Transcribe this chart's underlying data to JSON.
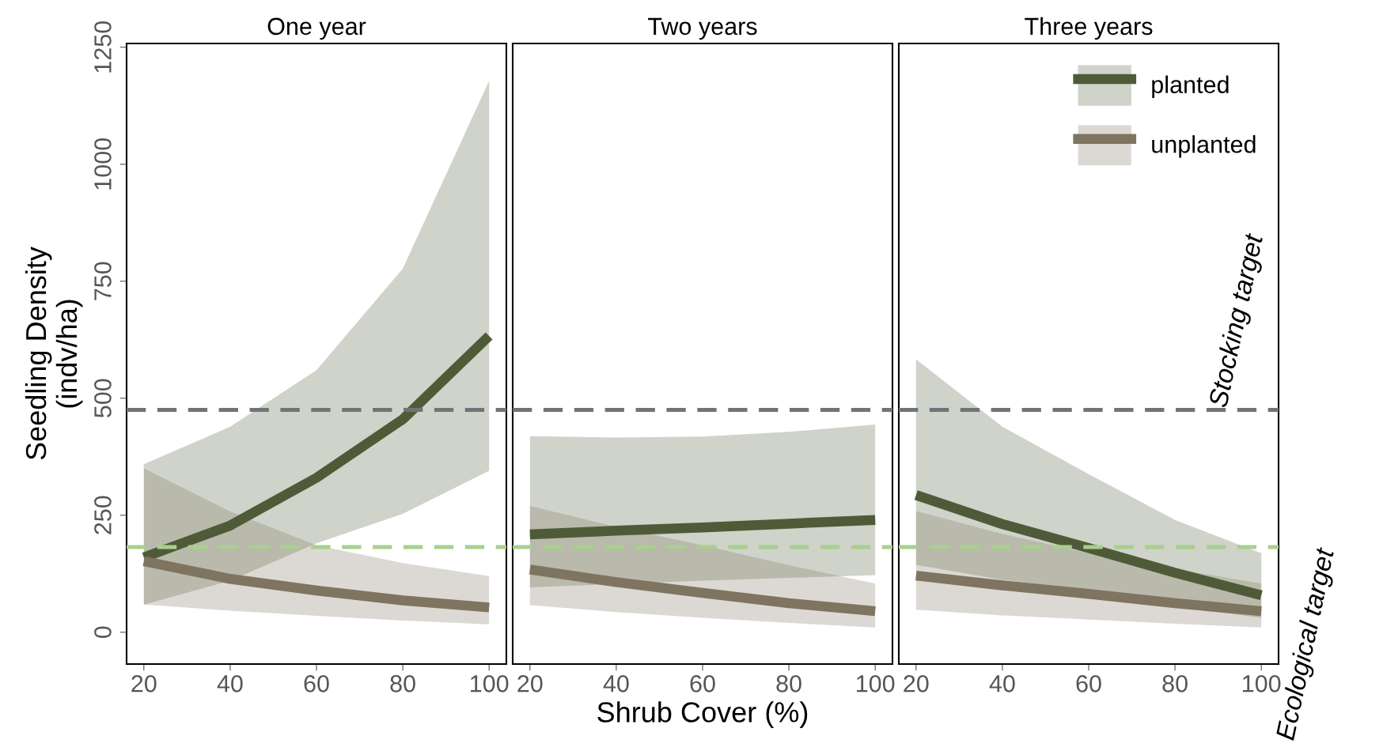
{
  "chart_data": [
    {
      "type": "line",
      "title": "One year",
      "ylabel": "Seedling Density\n(indv/ha)",
      "xlim": [
        16,
        104
      ],
      "xticks": [
        20,
        40,
        60,
        80,
        100
      ],
      "ylim": [
        -68,
        1258
      ],
      "yticks": [
        0,
        250,
        500,
        750,
        1000,
        1250
      ],
      "x": [
        20,
        40,
        60,
        80,
        100
      ],
      "series": [
        {
          "color": "#4f5b38",
          "values": [
            160,
            228,
            330,
            455,
            633
          ],
          "lower": [
            59,
            110,
            190,
            253,
            345
          ],
          "upper": [
            359,
            439,
            560,
            777,
            1178
          ]
        },
        {
          "color": "#7f7460",
          "values": [
            152,
            114,
            89,
            68,
            53
          ],
          "lower": [
            59,
            46,
            35,
            25,
            17
          ],
          "upper": [
            350,
            258,
            186,
            148,
            120
          ]
        }
      ],
      "ref_lines": [
        {
          "axis": "y",
          "value": 475,
          "color": "#6f7477",
          "line_style": "dashed"
        },
        {
          "axis": "y",
          "value": 182,
          "color": "#a8d08d",
          "line_style": "dashed"
        }
      ],
      "grid": false
    },
    {
      "type": "line",
      "title": "Two years",
      "xlabel": "Shrub Cover (%)",
      "xlim": [
        16,
        104
      ],
      "xticks": [
        20,
        40,
        60,
        80,
        100
      ],
      "ylim": [
        -68,
        1258
      ],
      "yticks": [
        0,
        250,
        500,
        750,
        1000,
        1250
      ],
      "tick_labels": "x",
      "x": [
        20,
        40,
        60,
        80,
        100
      ],
      "series": [
        {
          "color": "#4f5b38",
          "values": [
            209,
            217,
            224,
            232,
            240
          ],
          "lower": [
            96,
            103,
            110,
            116,
            122
          ],
          "upper": [
            419,
            416,
            418,
            428,
            444
          ]
        },
        {
          "color": "#7f7460",
          "values": [
            134,
            107,
            84,
            62,
            45
          ],
          "lower": [
            58,
            43,
            31,
            20,
            10
          ],
          "upper": [
            270,
            225,
            186,
            143,
            104
          ]
        }
      ],
      "ref_lines": [
        {
          "axis": "y",
          "value": 475,
          "color": "#6f7477",
          "line_style": "dashed"
        },
        {
          "axis": "y",
          "value": 182,
          "color": "#a8d08d",
          "line_style": "dashed"
        }
      ],
      "grid": false
    },
    {
      "type": "line",
      "title": "Three years",
      "xlim": [
        16,
        104
      ],
      "xticks": [
        20,
        40,
        60,
        80,
        100
      ],
      "ylim": [
        -68,
        1258
      ],
      "yticks": [
        0,
        250,
        500,
        750,
        1000,
        1250
      ],
      "tick_labels": "x",
      "x": [
        20,
        40,
        60,
        80,
        100
      ],
      "series": [
        {
          "name": "planted",
          "color": "#4f5b38",
          "values": [
            293,
            231,
            180,
            127,
            79
          ],
          "lower": [
            144,
            112,
            90,
            55,
            31
          ],
          "upper": [
            583,
            439,
            338,
            240,
            169
          ]
        },
        {
          "name": "unplanted",
          "color": "#7f7460",
          "values": [
            121,
            100,
            82,
            62,
            45
          ],
          "lower": [
            48,
            36,
            27,
            18,
            10
          ],
          "upper": [
            259,
            210,
            169,
            135,
            104
          ]
        }
      ],
      "ref_lines": [
        {
          "axis": "y",
          "value": 475,
          "label": "Stocking target",
          "color": "#6f7477",
          "line_style": "dashed"
        },
        {
          "axis": "y",
          "value": 182,
          "label": "Ecological target",
          "color": "#a8d08d",
          "line_style": "dashed"
        }
      ],
      "grid": false,
      "legend": "top right"
    }
  ]
}
